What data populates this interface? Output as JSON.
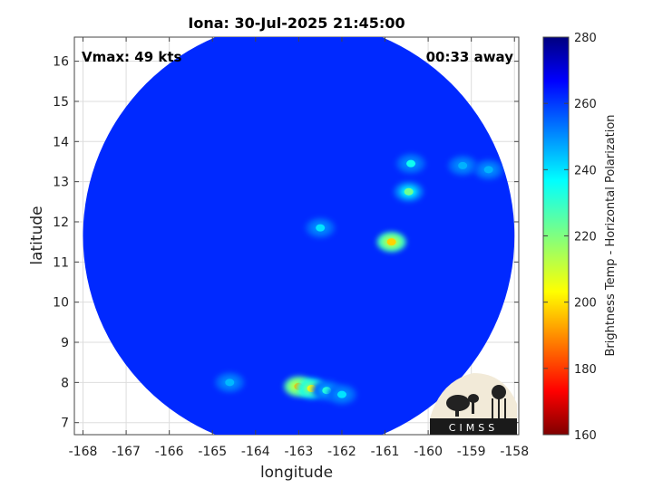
{
  "chart_data": {
    "type": "heatmap",
    "title": "Iona: 30-Jul-2025 21:45:00",
    "xlabel": "longitude",
    "ylabel": "latitude",
    "xlim": [
      -168.2,
      -157.9
    ],
    "ylim": [
      6.7,
      16.6
    ],
    "x_ticks": [
      -168,
      -167,
      -166,
      -165,
      -164,
      -163,
      -162,
      -161,
      -160,
      -159,
      -158
    ],
    "y_ticks": [
      7,
      8,
      9,
      10,
      11,
      12,
      13,
      14,
      15,
      16
    ],
    "grid": true,
    "annotations": {
      "top_left": "Vmax: 49 kts",
      "top_right": "00:33 away"
    },
    "colorbar": {
      "label": "Brightness Temp - Horizontal Polarization",
      "min": 160,
      "max": 280,
      "ticks": [
        160,
        180,
        200,
        220,
        240,
        260,
        280
      ],
      "colormap": "jet"
    },
    "swath": {
      "center": [
        -163.0,
        11.65
      ],
      "radius_deg": 5.0,
      "background_value": 262
    },
    "features": [
      {
        "lon": -160.85,
        "lat": 11.5,
        "value": 198
      },
      {
        "lon": -160.45,
        "lat": 12.75,
        "value": 222
      },
      {
        "lon": -160.4,
        "lat": 13.45,
        "value": 235
      },
      {
        "lon": -163.0,
        "lat": 7.9,
        "value": 195
      },
      {
        "lon": -162.7,
        "lat": 7.85,
        "value": 205
      },
      {
        "lon": -162.35,
        "lat": 7.8,
        "value": 232
      },
      {
        "lon": -162.0,
        "lat": 7.7,
        "value": 240
      },
      {
        "lon": -164.6,
        "lat": 8.0,
        "value": 245
      },
      {
        "lon": -162.5,
        "lat": 11.85,
        "value": 240
      },
      {
        "lon": -159.2,
        "lat": 13.4,
        "value": 246
      },
      {
        "lon": -158.6,
        "lat": 13.3,
        "value": 246
      }
    ],
    "colors": {
      "deep_blue": "#0f3fd6",
      "background": "#ffffff"
    }
  },
  "logo": {
    "text": "CIMSS"
  }
}
